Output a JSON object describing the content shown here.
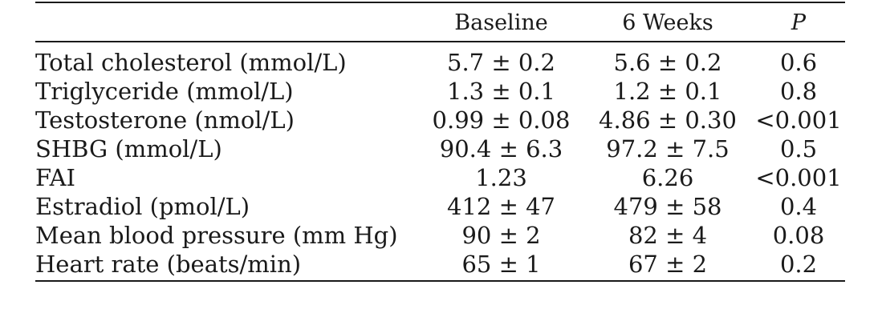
{
  "table": {
    "headers": {
      "label": "",
      "baseline": "Baseline",
      "weeks": "6 Weeks",
      "p": "P"
    },
    "rows": [
      {
        "label": "Total cholesterol (mmol/L)",
        "baseline": "5.7 ± 0.2",
        "weeks": "5.6 ± 0.2",
        "p": "0.6"
      },
      {
        "label": "Triglyceride (mmol/L)",
        "baseline": "1.3 ± 0.1",
        "weeks": "1.2 ± 0.1",
        "p": "0.8"
      },
      {
        "label": "Testosterone (nmol/L)",
        "baseline": "0.99 ± 0.08",
        "weeks": "4.86 ± 0.30",
        "p": "<0.001"
      },
      {
        "label": "SHBG (mmol/L)",
        "baseline": "90.4 ± 6.3",
        "weeks": "97.2 ± 7.5",
        "p": "0.5"
      },
      {
        "label": "FAI",
        "baseline": "1.23",
        "weeks": "6.26",
        "p": "<0.001"
      },
      {
        "label": "Estradiol (pmol/L)",
        "baseline": "412 ± 47",
        "weeks": "479 ± 58",
        "p": "0.4"
      },
      {
        "label": "Mean blood pressure (mm Hg)",
        "baseline": "90 ± 2",
        "weeks": "82 ± 4",
        "p": "0.08"
      },
      {
        "label": "Heart rate (beats/min)",
        "baseline": "65 ± 1",
        "weeks": "67 ± 2",
        "p": "0.2"
      }
    ]
  }
}
